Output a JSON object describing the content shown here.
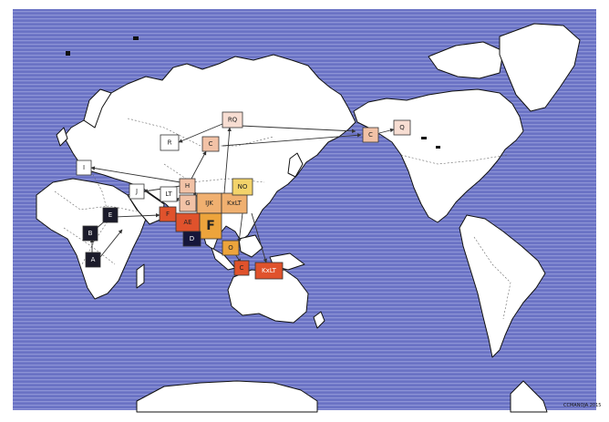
{
  "colors": {
    "ocean": "#6a72c4",
    "ocean_stripe": "#8d94d6",
    "land": "#ffffff",
    "coast": "#111111",
    "border": "#555555",
    "arrow": "#333333"
  },
  "haplogroups": [
    {
      "id": "RQ",
      "label": "RQ",
      "fill": "#f7ddd2",
      "text": "#222222"
    },
    {
      "id": "R",
      "label": "R",
      "fill": "#ffffff",
      "text": "#222222"
    },
    {
      "id": "C-north",
      "label": "C",
      "fill": "#f2c2a6",
      "text": "#222222"
    },
    {
      "id": "C-alaska",
      "label": "C",
      "fill": "#f2c2a6",
      "text": "#222222"
    },
    {
      "id": "Q",
      "label": "Q",
      "fill": "#f7ddd2",
      "text": "#222222"
    },
    {
      "id": "I",
      "label": "I",
      "fill": "#ffffff",
      "text": "#222222"
    },
    {
      "id": "J",
      "label": "J",
      "fill": "#ffffff",
      "text": "#222222"
    },
    {
      "id": "LT",
      "label": "LT",
      "fill": "#ffffff",
      "text": "#222222"
    },
    {
      "id": "H",
      "label": "H",
      "fill": "#f2c2a6",
      "text": "#222222"
    },
    {
      "id": "G",
      "label": "G",
      "fill": "#f2c2a6",
      "text": "#222222"
    },
    {
      "id": "IJK",
      "label": "IJK",
      "fill": "#f0b070",
      "text": "#222222"
    },
    {
      "id": "KxLT",
      "label": "KxLT",
      "fill": "#f0b070",
      "text": "#222222"
    },
    {
      "id": "NO",
      "label": "NO",
      "fill": "#f3d36a",
      "text": "#222222"
    },
    {
      "id": "F-red",
      "label": "F",
      "fill": "#e0522c",
      "text": "#222222"
    },
    {
      "id": "AE",
      "label": "AE",
      "fill": "#e0522c",
      "text": "#222222"
    },
    {
      "id": "F",
      "label": "F",
      "fill": "#eda43c",
      "text": "#222222"
    },
    {
      "id": "D",
      "label": "D",
      "fill": "#16163a",
      "text": "#ffffff"
    },
    {
      "id": "E",
      "label": "E",
      "fill": "#1b1b2a",
      "text": "#ffffff"
    },
    {
      "id": "B",
      "label": "B",
      "fill": "#1b1b2a",
      "text": "#ffffff"
    },
    {
      "id": "A",
      "label": "A",
      "fill": "#1b1b2a",
      "text": "#ffffff"
    },
    {
      "id": "O",
      "label": "O",
      "fill": "#eda43c",
      "text": "#222222"
    },
    {
      "id": "C-aus",
      "label": "C",
      "fill": "#e0522c",
      "text": "#222222"
    },
    {
      "id": "KxLT-aus",
      "label": "KxLT",
      "fill": "#e0522c",
      "text": "#ffffff"
    }
  ],
  "credit": "CCMANOJA.2015"
}
